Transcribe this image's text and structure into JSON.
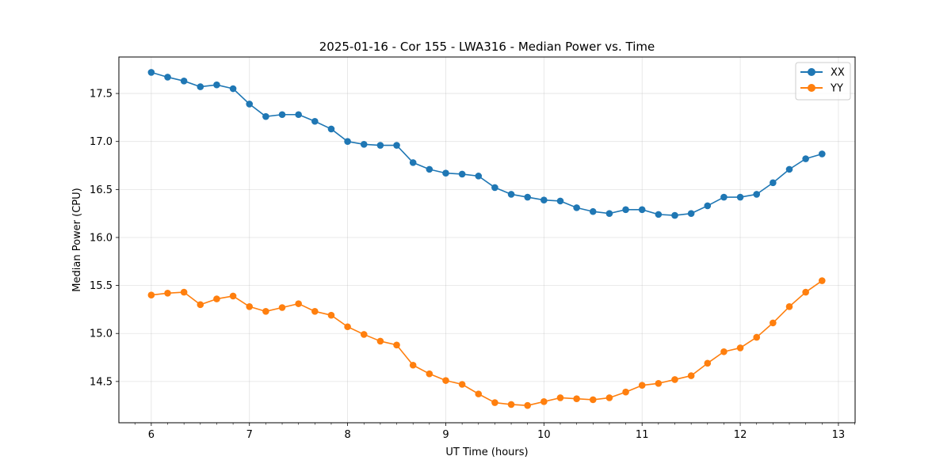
{
  "chart_data": {
    "type": "line",
    "title": "2025-01-16 - Cor 155 - LWA316 - Median Power vs. Time",
    "xlabel": "UT Time (hours)",
    "ylabel": "Median Power (CPU)",
    "xlim": [
      5.67,
      13.17
    ],
    "ylim": [
      14.07,
      17.88
    ],
    "xticks": [
      6,
      7,
      8,
      9,
      10,
      11,
      12,
      13
    ],
    "yticks": [
      14.5,
      15.0,
      15.5,
      16.0,
      16.5,
      17.0,
      17.5
    ],
    "ytick_labels": [
      "14.5",
      "15.0",
      "15.5",
      "16.0",
      "16.5",
      "17.0",
      "17.5"
    ],
    "grid": true,
    "legend": "top-right",
    "x": [
      6.0,
      6.1667,
      6.3333,
      6.5,
      6.6667,
      6.8333,
      7.0,
      7.1667,
      7.3333,
      7.5,
      7.6667,
      7.8333,
      8.0,
      8.1667,
      8.3333,
      8.5,
      8.6667,
      8.8333,
      9.0,
      9.1667,
      9.3333,
      9.5,
      9.6667,
      9.8333,
      10.0,
      10.1667,
      10.3333,
      10.5,
      10.6667,
      10.8333,
      11.0,
      11.1667,
      11.3333,
      11.5,
      11.6667,
      11.8333,
      12.0,
      12.1667,
      12.3333,
      12.5,
      12.6667,
      12.8333
    ],
    "series": [
      {
        "name": "XX",
        "color": "#1f77b4",
        "values": [
          17.72,
          17.67,
          17.63,
          17.57,
          17.59,
          17.55,
          17.39,
          17.26,
          17.28,
          17.28,
          17.21,
          17.13,
          17.0,
          16.97,
          16.96,
          16.96,
          16.78,
          16.71,
          16.67,
          16.66,
          16.64,
          16.52,
          16.45,
          16.42,
          16.39,
          16.38,
          16.31,
          16.27,
          16.25,
          16.29,
          16.29,
          16.24,
          16.23,
          16.25,
          16.33,
          16.42,
          16.42,
          16.45,
          16.57,
          16.71,
          16.82,
          16.87
        ]
      },
      {
        "name": "YY",
        "color": "#ff7f0e",
        "values": [
          15.4,
          15.42,
          15.43,
          15.3,
          15.36,
          15.39,
          15.28,
          15.23,
          15.27,
          15.31,
          15.23,
          15.19,
          15.07,
          14.99,
          14.92,
          14.88,
          14.67,
          14.58,
          14.51,
          14.47,
          14.37,
          14.28,
          14.26,
          14.25,
          14.29,
          14.33,
          14.32,
          14.31,
          14.33,
          14.39,
          14.46,
          14.48,
          14.52,
          14.56,
          14.69,
          14.81,
          14.85,
          14.96,
          15.11,
          15.28,
          15.43,
          15.55
        ]
      }
    ]
  }
}
